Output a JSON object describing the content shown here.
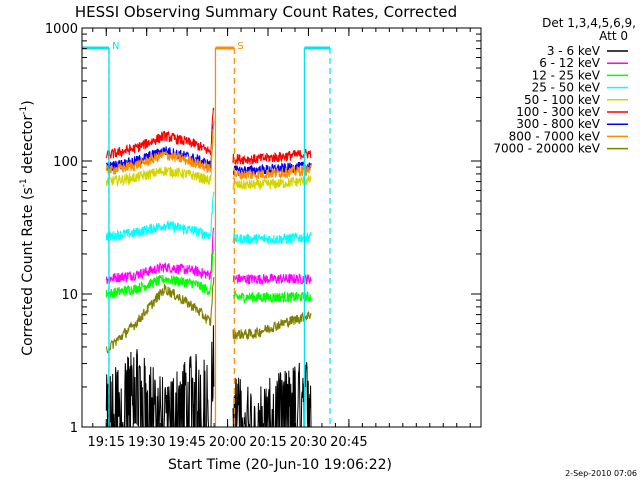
{
  "chart_data": {
    "type": "line",
    "title": "HESSI Observing Summary Count Rates, Corrected",
    "xlabel": "Start Time (20-Jun-10 19:06:22)",
    "ylabel_main": "Corrected Count Rate (s",
    "ylabel_sup1": "-1",
    "ylabel_mid": " detector",
    "ylabel_sup2": "-1",
    "ylabel_end": ")",
    "yscale": "log",
    "xlim": [
      1146,
      1294
    ],
    "ylim": [
      1,
      1000
    ],
    "x_ticks": [
      {
        "v": 1155,
        "label": "19:15"
      },
      {
        "v": 1170,
        "label": "19:30"
      },
      {
        "v": 1185,
        "label": "19:45"
      },
      {
        "v": 1200,
        "label": "20:00"
      },
      {
        "v": 1215,
        "label": "20:15"
      },
      {
        "v": 1230,
        "label": "20:30"
      },
      {
        "v": 1245,
        "label": "20:45"
      }
    ],
    "y_ticks": [
      {
        "v": 1,
        "label": "1"
      },
      {
        "v": 10,
        "label": "10"
      },
      {
        "v": 100,
        "label": "100"
      },
      {
        "v": 1000,
        "label": "1000"
      }
    ],
    "legend_header": [
      "Det 1,3,4,5,6,9,",
      "Att 0"
    ],
    "legend_placement": "right",
    "footer_date": "2-Sep-2010 07:06",
    "markers": [
      {
        "label": "N",
        "kind": "night",
        "line_x": 1156,
        "dashed_x": 1156,
        "bar_from": 1146,
        "bar_to": 1156,
        "color": "#00e5ee"
      },
      {
        "label": "S",
        "kind": "saa",
        "line_x": 1195.5,
        "dashed_x": 1202.5,
        "bar_from": 1195.5,
        "bar_to": 1202.5,
        "color": "#ff8c00"
      },
      {
        "label": "",
        "kind": "night",
        "line_x": 1228.5,
        "dashed_x": 1238,
        "bar_from": 1228.5,
        "bar_to": 1238,
        "color": "#00e5ee"
      }
    ],
    "segments": [
      [
        1155,
        1195
      ],
      [
        1202,
        1231
      ]
    ],
    "flare_peak_time": 1195,
    "series": [
      {
        "name": "3 - 6 keV",
        "color": "#000000",
        "values": [
          1.5,
          2.4,
          1.4,
          2.2,
          1.8,
          1.2,
          1.6,
          2.1
        ]
      },
      {
        "name": "6 - 12 keV",
        "color": "#ff00ff",
        "values": [
          13,
          14,
          16,
          15,
          13,
          13,
          13,
          13
        ]
      },
      {
        "name": "12 - 25 keV",
        "color": "#00ff00",
        "values": [
          10,
          11,
          13,
          12,
          9.5,
          9.5,
          9.5,
          9.5
        ]
      },
      {
        "name": "25 - 50 keV",
        "color": "#00ffff",
        "values": [
          27,
          29,
          33,
          30,
          26,
          26,
          26,
          27
        ]
      },
      {
        "name": "50 - 100 keV",
        "color": "#d4d400",
        "values": [
          70,
          75,
          85,
          78,
          66,
          66,
          68,
          72
        ]
      },
      {
        "name": "100 - 300 keV",
        "color": "#ff0000",
        "values": [
          110,
          125,
          155,
          135,
          105,
          103,
          108,
          115
        ]
      },
      {
        "name": "300 - 800 keV",
        "color": "#0000ff",
        "values": [
          90,
          100,
          120,
          105,
          85,
          85,
          88,
          92
        ]
      },
      {
        "name": "800 - 7000 keV",
        "color": "#ff8c00",
        "values": [
          84,
          93,
          112,
          98,
          80,
          79,
          82,
          86
        ]
      },
      {
        "name": "7000 - 20000 keV",
        "color": "#808000",
        "values": [
          3.8,
          6,
          11,
          8,
          5,
          5,
          6,
          7
        ]
      }
    ]
  }
}
